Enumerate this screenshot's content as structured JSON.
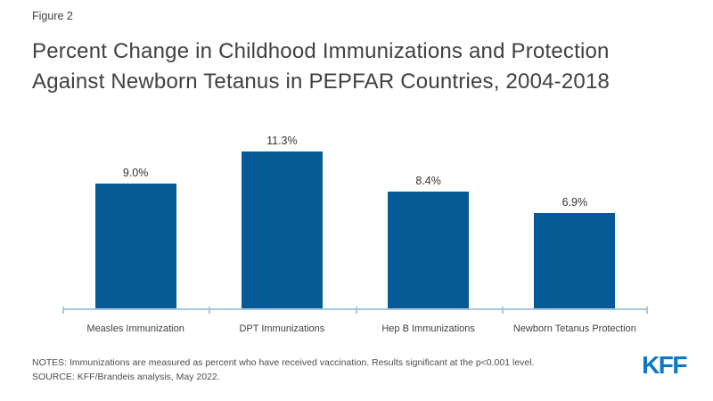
{
  "figure_label": "Figure 2",
  "title": "Percent Change in Childhood Immunizations and Protection Against Newborn Tetanus in PEPFAR Countries, 2004-2018",
  "chart_data": {
    "type": "bar",
    "categories": [
      "Measles Immunization",
      "DPT Immunizations",
      "Hep B Immunizations",
      "Newborn Tetanus Protection"
    ],
    "values": [
      9.0,
      11.3,
      8.4,
      6.9
    ],
    "value_labels": [
      "9.0%",
      "11.3%",
      "8.4%",
      "6.9%"
    ],
    "title": "Percent Change in Childhood Immunizations and Protection Against Newborn Tetanus in PEPFAR Countries, 2004-2018",
    "xlabel": "",
    "ylabel": "",
    "ylim": [
      0,
      12.6
    ],
    "grid": false,
    "legend": false,
    "data_labels_position": "above-bar"
  },
  "notes": "NOTES: Immunizations are measured as percent who have received vaccination. Results significant at the p<0.001 level.",
  "source": "SOURCE: KFF/Brandeis analysis, May 2022.",
  "logo_text": "KFF",
  "colors": {
    "bar": "#065B96",
    "axis": "#A9C7DE",
    "title_text": "#414042",
    "value_label_text": "#333333",
    "category_label_text": "#404040",
    "notes_text": "#4C4C4C",
    "logo": "#0C77C9"
  }
}
